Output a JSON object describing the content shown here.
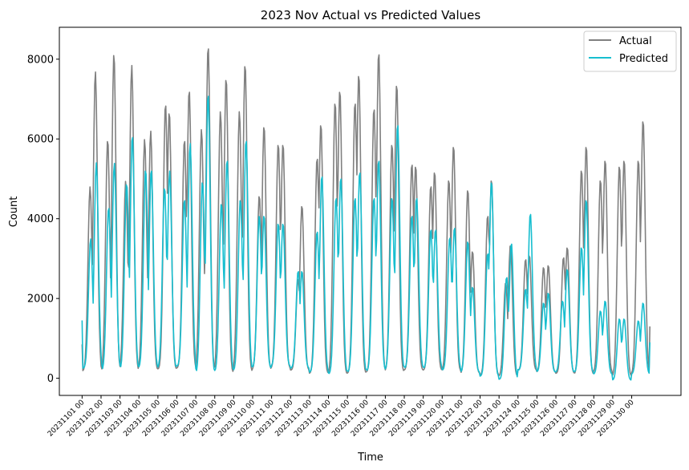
{
  "chart_data": {
    "type": "line",
    "title": "2023 Nov Actual vs Predicted Values",
    "xlabel": "Time",
    "ylabel": "Count",
    "xlim": [
      -1.2,
      31.6
    ],
    "ylim": [
      -430,
      8800
    ],
    "yticks": [
      0,
      2000,
      4000,
      6000,
      8000
    ],
    "ytick_labels": [
      "0",
      "2000",
      "4000",
      "6000",
      "8000"
    ],
    "xticks": [
      0,
      1,
      2,
      3,
      4,
      5,
      6,
      7,
      8,
      9,
      10,
      11,
      12,
      13,
      14,
      15,
      16,
      17,
      18,
      19,
      20,
      21,
      22,
      23,
      24,
      25,
      26,
      27,
      28,
      29
    ],
    "xtick_labels": [
      "20231101 00",
      "20231102 00",
      "20231103 00",
      "20231104 00",
      "20231105 00",
      "20231106 00",
      "20231107 00",
      "20231108 00",
      "20231109 00",
      "20231110 00",
      "20231111 00",
      "20231112 00",
      "20231113 00",
      "20231114 00",
      "20231115 00",
      "20231116 00",
      "20231117 00",
      "20231118 00",
      "20231119 00",
      "20231120 00",
      "20231121 00",
      "20231122 00",
      "20231123 00",
      "20231124 00",
      "20231125 00",
      "20231126 00",
      "20231127 00",
      "20231128 00",
      "20231129 00",
      "20231130 00"
    ],
    "legend_position": "top-right",
    "grid": false,
    "series": [
      {
        "name": "Actual",
        "color": "#808080",
        "daily_min": [
          180,
          120,
          180,
          200,
          220,
          250,
          120,
          120,
          160,
          220,
          250,
          200,
          120,
          100,
          120,
          150,
          160,
          200,
          200,
          180,
          120,
          80,
          50,
          200,
          150,
          120,
          100,
          150,
          50,
          100
        ],
        "peaks": [
          [
            0.42,
            4800
          ],
          [
            0.7,
            7700
          ],
          [
            1.35,
            6000
          ],
          [
            1.68,
            8150
          ],
          [
            2.3,
            4950
          ],
          [
            2.62,
            7850
          ],
          [
            3.3,
            6000
          ],
          [
            3.62,
            6200
          ],
          [
            4.4,
            6900
          ],
          [
            4.6,
            6700
          ],
          [
            5.4,
            6000
          ],
          [
            5.65,
            7250
          ],
          [
            6.3,
            6250
          ],
          [
            6.65,
            8350
          ],
          [
            7.3,
            6700
          ],
          [
            7.6,
            7550
          ],
          [
            8.3,
            6700
          ],
          [
            8.6,
            7900
          ],
          [
            9.35,
            4600
          ],
          [
            9.6,
            6350
          ],
          [
            10.35,
            5900
          ],
          [
            10.6,
            5900
          ],
          [
            11.4,
            2500
          ],
          [
            11.6,
            4350
          ],
          [
            12.4,
            5550
          ],
          [
            12.6,
            6400
          ],
          [
            13.35,
            6950
          ],
          [
            13.6,
            7250
          ],
          [
            14.4,
            6950
          ],
          [
            14.6,
            7650
          ],
          [
            15.4,
            6800
          ],
          [
            15.65,
            8200
          ],
          [
            16.35,
            5900
          ],
          [
            16.6,
            7400
          ],
          [
            17.4,
            5400
          ],
          [
            17.6,
            5350
          ],
          [
            18.4,
            4850
          ],
          [
            18.6,
            5200
          ],
          [
            19.35,
            5000
          ],
          [
            19.6,
            5850
          ],
          [
            20.35,
            4750
          ],
          [
            20.6,
            3200
          ],
          [
            21.4,
            4100
          ],
          [
            21.6,
            5000
          ],
          [
            22.35,
            2400
          ],
          [
            22.6,
            3350
          ],
          [
            23.4,
            3000
          ],
          [
            23.6,
            3100
          ],
          [
            24.35,
            2800
          ],
          [
            24.6,
            2850
          ],
          [
            25.4,
            3050
          ],
          [
            25.6,
            3300
          ],
          [
            26.35,
            5250
          ],
          [
            26.6,
            5850
          ],
          [
            27.35,
            5000
          ],
          [
            27.6,
            5500
          ],
          [
            28.35,
            5350
          ],
          [
            28.6,
            5500
          ],
          [
            29.35,
            5500
          ],
          [
            29.6,
            6500
          ]
        ],
        "start": 850,
        "end": 1300
      },
      {
        "name": "Predicted",
        "color": "#17becf",
        "daily_min": [
          250,
          180,
          200,
          250,
          250,
          300,
          100,
          150,
          180,
          250,
          300,
          250,
          150,
          100,
          150,
          180,
          200,
          250,
          250,
          200,
          150,
          50,
          -30,
          200,
          150,
          150,
          150,
          100,
          -50,
          100
        ],
        "peaks": [
          [
            0.45,
            3500
          ],
          [
            0.75,
            5400
          ],
          [
            1.4,
            4300
          ],
          [
            1.7,
            5400
          ],
          [
            2.35,
            4900
          ],
          [
            2.65,
            6100
          ],
          [
            3.35,
            5250
          ],
          [
            3.65,
            5250
          ],
          [
            4.35,
            4800
          ],
          [
            4.62,
            5200
          ],
          [
            5.4,
            4500
          ],
          [
            5.7,
            5900
          ],
          [
            6.35,
            4950
          ],
          [
            6.65,
            7150
          ],
          [
            7.35,
            4400
          ],
          [
            7.65,
            5500
          ],
          [
            8.35,
            4500
          ],
          [
            8.65,
            6000
          ],
          [
            9.35,
            4100
          ],
          [
            9.6,
            4100
          ],
          [
            10.35,
            3900
          ],
          [
            10.6,
            3900
          ],
          [
            11.4,
            2700
          ],
          [
            11.6,
            2700
          ],
          [
            12.4,
            3700
          ],
          [
            12.65,
            5100
          ],
          [
            13.4,
            4550
          ],
          [
            13.65,
            5050
          ],
          [
            14.4,
            4550
          ],
          [
            14.65,
            5200
          ],
          [
            15.4,
            4550
          ],
          [
            15.65,
            5500
          ],
          [
            16.35,
            4550
          ],
          [
            16.65,
            6400
          ],
          [
            17.4,
            4100
          ],
          [
            17.65,
            4550
          ],
          [
            18.4,
            3750
          ],
          [
            18.65,
            3750
          ],
          [
            19.4,
            3550
          ],
          [
            19.65,
            3800
          ],
          [
            20.35,
            3450
          ],
          [
            20.6,
            2300
          ],
          [
            21.4,
            3150
          ],
          [
            21.6,
            4950
          ],
          [
            22.4,
            2550
          ],
          [
            22.65,
            3400
          ],
          [
            23.4,
            2250
          ],
          [
            23.65,
            4150
          ],
          [
            24.35,
            1900
          ],
          [
            24.6,
            2150
          ],
          [
            25.35,
            1950
          ],
          [
            25.6,
            2750
          ],
          [
            26.35,
            3300
          ],
          [
            26.6,
            4500
          ],
          [
            27.35,
            1700
          ],
          [
            27.6,
            1950
          ],
          [
            28.35,
            1500
          ],
          [
            28.6,
            1500
          ],
          [
            29.35,
            1450
          ],
          [
            29.6,
            1900
          ]
        ],
        "start": 1450,
        "end": 900
      }
    ]
  }
}
